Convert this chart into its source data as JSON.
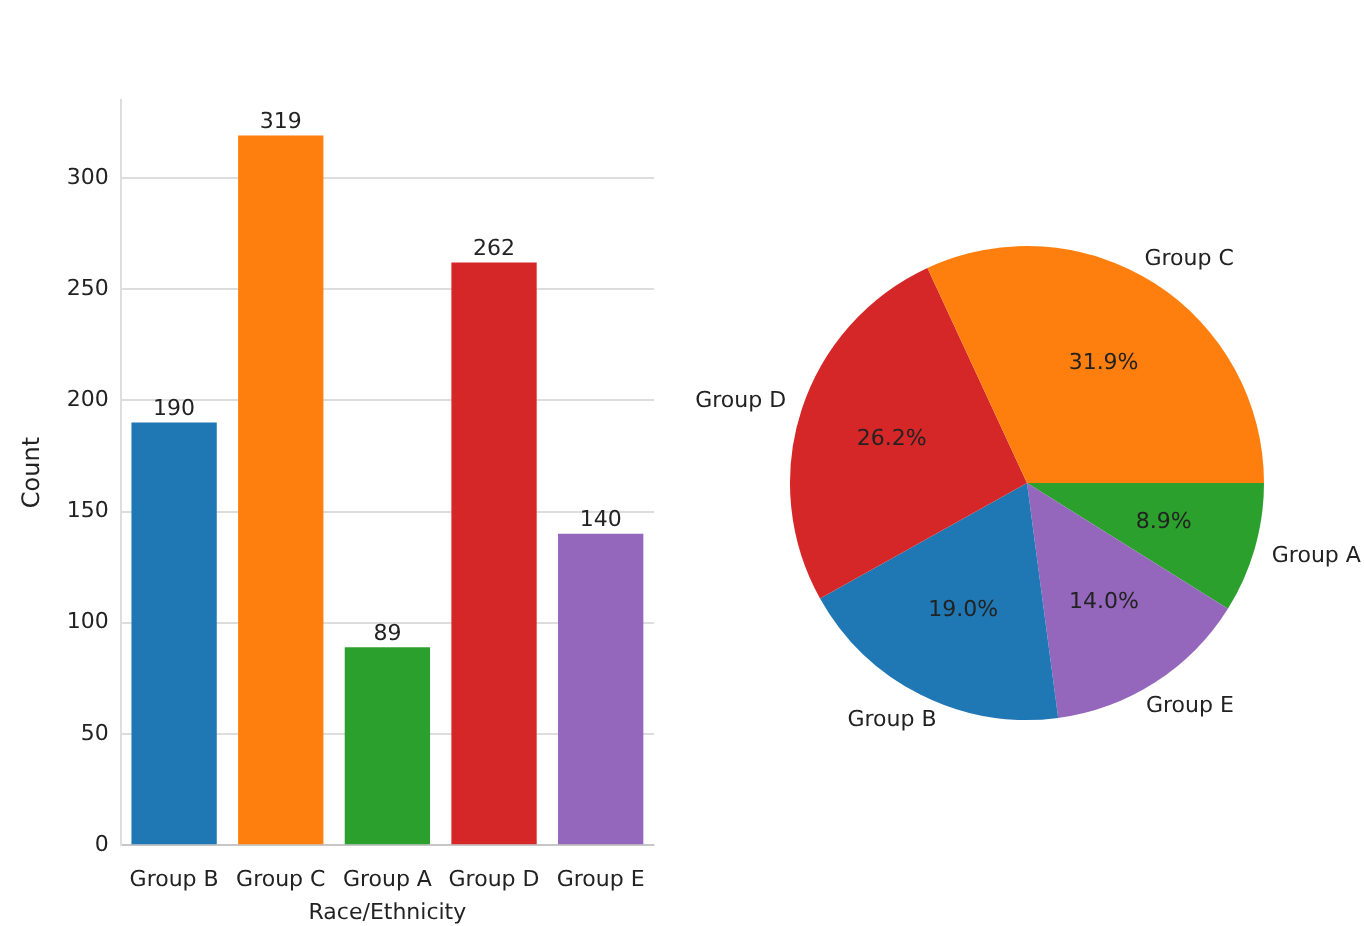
{
  "chart_data": [
    {
      "type": "bar",
      "xlabel": "Race/Ethnicity",
      "ylabel": "Count",
      "categories": [
        "Group B",
        "Group C",
        "Group A",
        "Group D",
        "Group E"
      ],
      "values": [
        190,
        319,
        89,
        262,
        140
      ],
      "colors": [
        "#1f77b4",
        "#ff7f0e",
        "#2ca02c",
        "#d62728",
        "#9467bd"
      ],
      "ylim": [
        0,
        335
      ],
      "yticks": [
        0,
        50,
        100,
        150,
        200,
        250,
        300
      ],
      "grid": "y",
      "data_labels": true
    },
    {
      "type": "pie",
      "categories": [
        "Group A",
        "Group E",
        "Group B",
        "Group D",
        "Group C"
      ],
      "values": [
        8.9,
        14.0,
        19.0,
        26.2,
        31.9
      ],
      "value_labels": [
        "8.9%",
        "14.0%",
        "19.0%",
        "26.2%",
        "31.9%"
      ],
      "colors": [
        "#2ca02c",
        "#9467bd",
        "#1f77b4",
        "#d62728",
        "#ff7f0e"
      ]
    }
  ]
}
